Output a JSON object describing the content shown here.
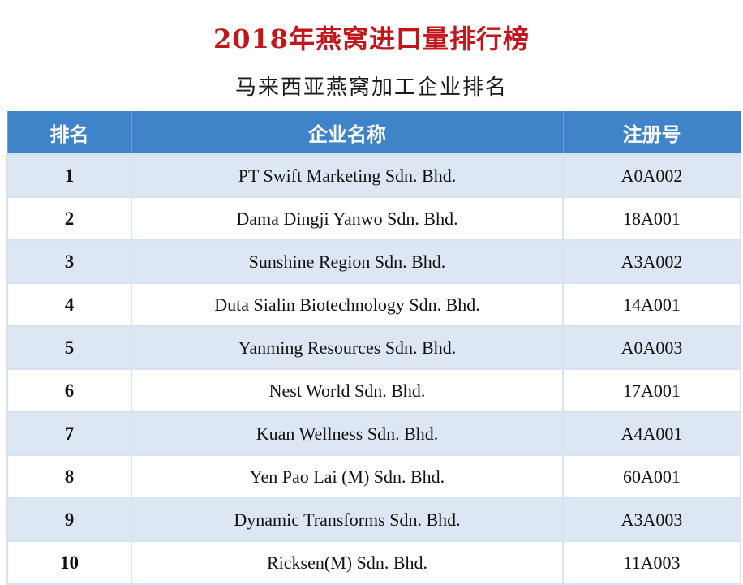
{
  "title": "2018年燕窝进口量排行榜",
  "subtitle": "马来西亚燕窝加工企业排名",
  "table": {
    "headers": {
      "rank": "排名",
      "name": "企业名称",
      "reg": "注册号"
    },
    "rows": [
      {
        "rank": "1",
        "name": "PT Swift Marketing Sdn. Bhd.",
        "reg": "A0A002"
      },
      {
        "rank": "2",
        "name": "Dama Dingji Yanwo Sdn. Bhd.",
        "reg": "18A001"
      },
      {
        "rank": "3",
        "name": "Sunshine Region Sdn. Bhd.",
        "reg": "A3A002"
      },
      {
        "rank": "4",
        "name": "Duta Sialin Biotechnology Sdn. Bhd.",
        "reg": "14A001"
      },
      {
        "rank": "5",
        "name": "Yanming Resources Sdn. Bhd.",
        "reg": "A0A003"
      },
      {
        "rank": "6",
        "name": "Nest World Sdn. Bhd.",
        "reg": "17A001"
      },
      {
        "rank": "7",
        "name": "Kuan Wellness Sdn. Bhd.",
        "reg": "A4A001"
      },
      {
        "rank": "8",
        "name": "Yen Pao Lai (M) Sdn. Bhd.",
        "reg": "60A001"
      },
      {
        "rank": "9",
        "name": "Dynamic Transforms Sdn. Bhd.",
        "reg": "A3A003"
      },
      {
        "rank": "10",
        "name": "Ricksen(M) Sdn. Bhd.",
        "reg": "11A003"
      }
    ]
  },
  "colors": {
    "title": "#c3161c",
    "header_bg": "#3f83c9",
    "stripe": "#dde7f4"
  }
}
